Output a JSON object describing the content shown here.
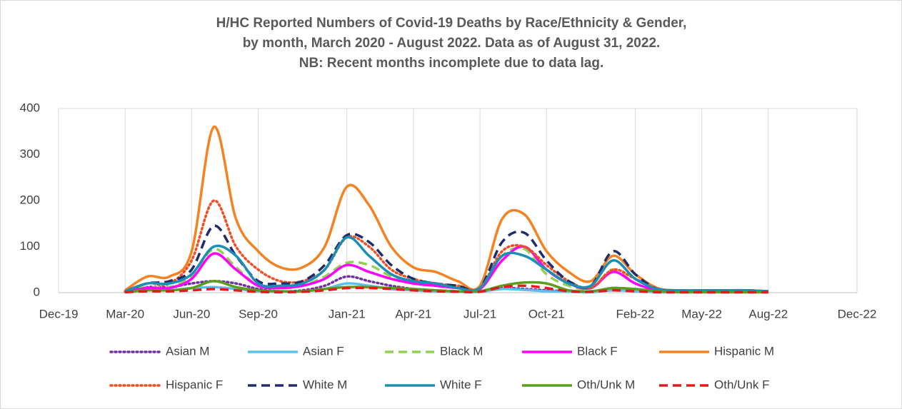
{
  "chart_data": {
    "type": "line",
    "title": [
      "H/HC Reported Numbers of Covid-19 Deaths by Race/Ethnicity & Gender,",
      "by month, March 2020 - August 2022. Data as of August 31, 2022.",
      "NB: Recent months incomplete due to data lag."
    ],
    "x": [
      "2020-03",
      "2020-04",
      "2020-05",
      "2020-06",
      "2020-07",
      "2020-08",
      "2020-09",
      "2020-10",
      "2020-11",
      "2020-12",
      "2021-01",
      "2021-02",
      "2021-03",
      "2021-04",
      "2021-05",
      "2021-06",
      "2021-07",
      "2021-08",
      "2021-09",
      "2021-10",
      "2021-11",
      "2021-12",
      "2022-01",
      "2022-02",
      "2022-03",
      "2022-04",
      "2022-05",
      "2022-06",
      "2022-07",
      "2022-08"
    ],
    "xlim": [
      "2019-12",
      "2022-12"
    ],
    "xticks": [
      {
        "value": "2019-12",
        "label": "Dec-19"
      },
      {
        "value": "2020-03",
        "label": "Mar-20"
      },
      {
        "value": "2020-06",
        "label": "Jun-20"
      },
      {
        "value": "2020-09",
        "label": "Sep-20"
      },
      {
        "value": "2021-01",
        "label": "Jan-21"
      },
      {
        "value": "2021-04",
        "label": "Apr-21"
      },
      {
        "value": "2021-07",
        "label": "Jul-21"
      },
      {
        "value": "2021-10",
        "label": "Oct-21"
      },
      {
        "value": "2022-02",
        "label": "Feb-22"
      },
      {
        "value": "2022-05",
        "label": "May-22"
      },
      {
        "value": "2022-08",
        "label": "Aug-22"
      },
      {
        "value": "2022-12",
        "label": "Dec-22"
      }
    ],
    "ylim": [
      0,
      400
    ],
    "yticks": [
      0,
      100,
      200,
      300,
      400
    ],
    "grid": "x",
    "legend": "bottom",
    "series": [
      {
        "name": "Asian M",
        "color": "#7030a0",
        "dash": "dot",
        "values": [
          2,
          12,
          12,
          20,
          25,
          20,
          8,
          3,
          5,
          15,
          35,
          25,
          15,
          8,
          5,
          3,
          3,
          10,
          8,
          5,
          3,
          2,
          10,
          5,
          2,
          1,
          1,
          1,
          1,
          1
        ]
      },
      {
        "name": "Asian F",
        "color": "#5bc0eb",
        "dash": "solid",
        "values": [
          1,
          5,
          5,
          10,
          12,
          8,
          3,
          2,
          3,
          8,
          20,
          15,
          8,
          5,
          3,
          2,
          2,
          8,
          6,
          3,
          2,
          1,
          5,
          3,
          1,
          1,
          1,
          1,
          1,
          1
        ]
      },
      {
        "name": "Black M",
        "color": "#92d050",
        "dash": "dash",
        "values": [
          2,
          12,
          12,
          35,
          95,
          55,
          15,
          10,
          15,
          35,
          65,
          60,
          35,
          20,
          15,
          10,
          8,
          80,
          95,
          40,
          15,
          10,
          50,
          20,
          5,
          3,
          3,
          3,
          3,
          2
        ]
      },
      {
        "name": "Black F",
        "color": "#ff00ff",
        "dash": "solid",
        "values": [
          2,
          10,
          10,
          30,
          85,
          50,
          15,
          10,
          15,
          30,
          60,
          45,
          30,
          20,
          15,
          10,
          8,
          70,
          100,
          50,
          20,
          10,
          45,
          20,
          5,
          3,
          3,
          3,
          3,
          2
        ]
      },
      {
        "name": "Hispanic M",
        "color": "#f58220",
        "dash": "solid",
        "values": [
          5,
          35,
          35,
          90,
          360,
          160,
          90,
          55,
          55,
          100,
          230,
          190,
          100,
          55,
          45,
          25,
          15,
          160,
          170,
          90,
          45,
          25,
          80,
          40,
          10,
          5,
          5,
          5,
          5,
          3
        ]
      },
      {
        "name": "Hispanic F",
        "color": "#f04e23",
        "dash": "dot",
        "values": [
          3,
          20,
          20,
          70,
          200,
          100,
          50,
          25,
          25,
          50,
          120,
          100,
          50,
          30,
          20,
          15,
          10,
          90,
          100,
          60,
          25,
          10,
          50,
          30,
          8,
          4,
          4,
          4,
          4,
          2
        ]
      },
      {
        "name": "White M",
        "color": "#1f2d6e",
        "dash": "dash",
        "values": [
          3,
          20,
          25,
          50,
          145,
          80,
          25,
          20,
          25,
          60,
          125,
          110,
          60,
          30,
          20,
          15,
          10,
          110,
          130,
          70,
          25,
          15,
          90,
          40,
          8,
          5,
          5,
          5,
          5,
          3
        ]
      },
      {
        "name": "White F",
        "color": "#1a8fb5",
        "dash": "solid",
        "values": [
          3,
          20,
          20,
          40,
          100,
          80,
          20,
          15,
          20,
          50,
          120,
          80,
          40,
          25,
          20,
          10,
          10,
          80,
          80,
          50,
          20,
          15,
          70,
          30,
          8,
          5,
          5,
          5,
          5,
          3
        ]
      },
      {
        "name": "Oth/Unk M",
        "color": "#5a9e1e",
        "dash": "solid",
        "values": [
          1,
          5,
          5,
          10,
          25,
          12,
          5,
          3,
          3,
          8,
          12,
          12,
          10,
          8,
          5,
          3,
          3,
          15,
          22,
          20,
          5,
          3,
          10,
          8,
          3,
          1,
          1,
          1,
          1,
          1
        ]
      },
      {
        "name": "Oth/Unk F",
        "color": "#e31a1c",
        "dash": "dash",
        "values": [
          1,
          3,
          3,
          5,
          8,
          5,
          2,
          1,
          2,
          5,
          10,
          10,
          8,
          5,
          3,
          2,
          2,
          12,
          15,
          10,
          3,
          2,
          5,
          3,
          1,
          1,
          1,
          1,
          1,
          1
        ]
      }
    ]
  }
}
